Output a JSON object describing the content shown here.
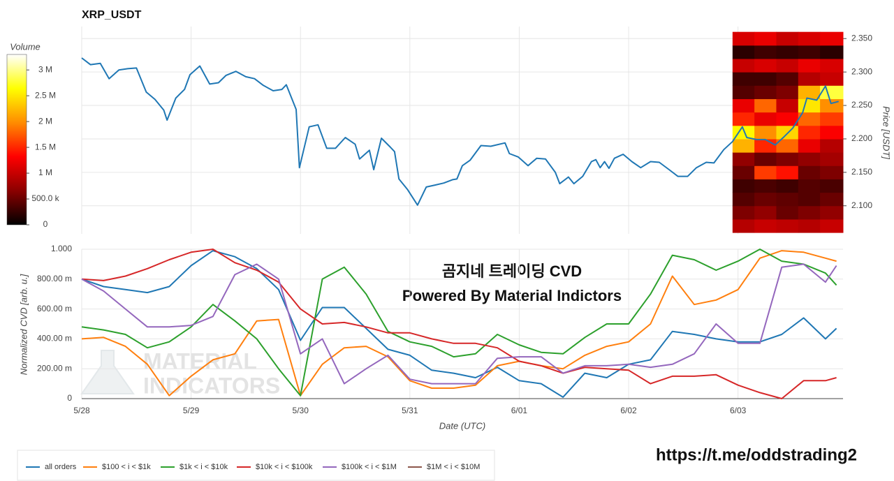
{
  "chart_data": [
    {
      "type": "line",
      "title": "XRP_USDT",
      "y_label": "Price [USDT]",
      "color": "#1f77b4",
      "x": [
        0,
        0.08,
        0.17,
        0.25,
        0.34,
        0.42,
        0.5,
        0.59,
        0.67,
        0.75,
        0.78,
        0.86,
        0.94,
        0.99,
        1.08,
        1.17,
        1.25,
        1.32,
        1.41,
        1.5,
        1.58,
        1.66,
        1.75,
        1.83,
        1.87,
        1.96,
        1.99,
        2.08,
        2.16,
        2.24,
        2.32,
        2.41,
        2.5,
        2.54,
        2.63,
        2.67,
        2.74,
        2.82,
        2.86,
        2.9,
        2.98,
        3.07,
        3.15,
        3.23,
        3.31,
        3.39,
        3.43,
        3.48,
        3.55,
        3.65,
        3.74,
        3.87,
        3.91,
        3.99,
        4.08,
        4.16,
        4.24,
        4.33,
        4.37,
        4.45,
        4.5,
        4.58,
        4.66,
        4.7,
        4.74,
        4.78,
        4.82,
        4.87,
        4.95,
        5.03,
        5.11,
        5.2,
        5.28,
        5.37,
        5.45,
        5.54,
        5.62,
        5.71,
        5.78,
        5.87,
        5.95,
        6.04,
        6.08,
        6.17,
        6.25,
        6.34,
        6.42,
        6.5,
        6.59,
        6.63,
        6.72,
        6.8,
        6.85,
        6.92
      ],
      "values": [
        2.321,
        2.311,
        2.313,
        2.29,
        2.303,
        2.305,
        2.306,
        2.27,
        2.259,
        2.243,
        2.228,
        2.261,
        2.274,
        2.296,
        2.309,
        2.282,
        2.284,
        2.295,
        2.301,
        2.293,
        2.29,
        2.28,
        2.272,
        2.274,
        2.281,
        2.244,
        2.157,
        2.218,
        2.221,
        2.186,
        2.186,
        2.202,
        2.192,
        2.17,
        2.183,
        2.154,
        2.201,
        2.188,
        2.181,
        2.14,
        2.124,
        2.101,
        2.128,
        2.131,
        2.134,
        2.139,
        2.14,
        2.16,
        2.168,
        2.19,
        2.189,
        2.194,
        2.178,
        2.173,
        2.16,
        2.171,
        2.17,
        2.15,
        2.133,
        2.143,
        2.133,
        2.144,
        2.166,
        2.169,
        2.157,
        2.166,
        2.156,
        2.171,
        2.177,
        2.166,
        2.157,
        2.166,
        2.165,
        2.154,
        2.144,
        2.144,
        2.157,
        2.165,
        2.164,
        2.184,
        2.196,
        2.218,
        2.202,
        2.199,
        2.199,
        2.191,
        2.203,
        2.216,
        2.239,
        2.261,
        2.258,
        2.279,
        2.253,
        2.256
      ],
      "xlim": [
        0,
        6.96
      ],
      "ylim": [
        2.058,
        2.368
      ],
      "xticks": [
        0,
        1,
        2,
        3,
        4,
        5,
        6
      ],
      "yticks": [
        {
          "value": 2.1,
          "label": "2.100"
        },
        {
          "value": 2.15,
          "label": "2.150"
        },
        {
          "value": 2.2,
          "label": "2.200"
        },
        {
          "value": 2.25,
          "label": "2.250"
        },
        {
          "value": 2.3,
          "label": "2.300"
        },
        {
          "value": 2.35,
          "label": "2.350"
        }
      ],
      "grid": true,
      "heatmap": {
        "x": [
          5.95,
          6.15,
          6.35,
          6.55,
          6.75,
          6.96
        ],
        "y": [
          2.06,
          2.08,
          2.1,
          2.12,
          2.14,
          2.16,
          2.18,
          2.2,
          2.22,
          2.24,
          2.26,
          2.28,
          2.3,
          2.32,
          2.34,
          2.36
        ],
        "values": [
          [
            900000,
            1000000,
            950000,
            900000,
            1000000
          ],
          [
            600000,
            700000,
            500000,
            600000,
            700000
          ],
          [
            400000,
            500000,
            450000,
            400000,
            500000
          ],
          [
            300000,
            350000,
            300000,
            400000,
            350000
          ],
          [
            500000,
            1600000,
            1400000,
            500000,
            600000
          ],
          [
            700000,
            500000,
            600000,
            700000,
            800000
          ],
          [
            2200000,
            1500000,
            1800000,
            1200000,
            900000
          ],
          [
            2600000,
            2000000,
            2400000,
            1500000,
            1300000
          ],
          [
            1500000,
            1200000,
            1300000,
            1800000,
            1600000
          ],
          [
            1200000,
            1800000,
            1000000,
            2500000,
            2000000
          ],
          [
            400000,
            500000,
            600000,
            2200000,
            2800000
          ],
          [
            300000,
            300000,
            400000,
            900000,
            1000000
          ],
          [
            1000000,
            1100000,
            1000000,
            1200000,
            1100000
          ],
          [
            200000,
            300000,
            250000,
            300000,
            200000
          ],
          [
            1100000,
            1200000,
            1000000,
            1100000,
            1200000
          ]
        ]
      },
      "colorbar": {
        "title": "Volume",
        "lim": [
          0,
          3300000
        ],
        "colorscale": [
          "#000000",
          "#8b0000",
          "#ff0000",
          "#ff8c00",
          "#ffff00",
          "#ffffff"
        ],
        "ticks": [
          0,
          {
            "value": 500000,
            "label": "500.0 k"
          },
          {
            "value": 1000000,
            "label": "1 M"
          },
          {
            "value": 1500000,
            "label": "1.5 M"
          },
          {
            "value": 2000000,
            "label": "2 M"
          },
          {
            "value": 2500000,
            "label": "2.5 M"
          },
          {
            "value": 3000000,
            "label": "3 M"
          }
        ]
      }
    },
    {
      "type": "line",
      "y_label": "Normalized CVD [arb. u.]",
      "x_label": "Date (UTC)",
      "annotations": [
        "곰지네 트레이딩 CVD",
        "Powered By Material Indictors"
      ],
      "x": [
        0,
        0.2,
        0.4,
        0.6,
        0.8,
        1,
        1.2,
        1.4,
        1.6,
        1.8,
        2,
        2.2,
        2.4,
        2.6,
        2.8,
        3,
        3.2,
        3.4,
        3.6,
        3.8,
        4,
        4.2,
        4.4,
        4.6,
        4.8,
        5,
        5.2,
        5.4,
        5.6,
        5.8,
        6,
        6.2,
        6.4,
        6.6,
        6.8,
        6.9
      ],
      "series": [
        {
          "name": "all orders",
          "color": "#1f77b4",
          "values": [
            0.8,
            0.75,
            0.73,
            0.71,
            0.75,
            0.89,
            0.99,
            0.95,
            0.87,
            0.73,
            0.39,
            0.61,
            0.61,
            0.47,
            0.33,
            0.29,
            0.19,
            0.17,
            0.14,
            0.21,
            0.12,
            0.1,
            0.01,
            0.17,
            0.14,
            0.23,
            0.26,
            0.45,
            0.43,
            0.4,
            0.38,
            0.38,
            0.43,
            0.54,
            0.4,
            0.47
          ]
        },
        {
          "name": "$100 < i < $1k",
          "color": "#ff7f0e",
          "values": [
            0.4,
            0.41,
            0.35,
            0.23,
            0.02,
            0.15,
            0.26,
            0.3,
            0.52,
            0.53,
            0.02,
            0.23,
            0.34,
            0.35,
            0.28,
            0.12,
            0.07,
            0.07,
            0.09,
            0.22,
            0.25,
            0.22,
            0.2,
            0.29,
            0.35,
            0.38,
            0.5,
            0.82,
            0.63,
            0.66,
            0.73,
            0.94,
            0.99,
            0.98,
            0.94,
            0.92
          ]
        },
        {
          "name": "$1k < i < $10k",
          "color": "#2ca02c",
          "values": [
            0.48,
            0.46,
            0.43,
            0.34,
            0.38,
            0.48,
            0.63,
            0.52,
            0.4,
            0.2,
            0.02,
            0.8,
            0.88,
            0.7,
            0.45,
            0.38,
            0.35,
            0.28,
            0.3,
            0.43,
            0.36,
            0.31,
            0.3,
            0.41,
            0.5,
            0.5,
            0.7,
            0.96,
            0.93,
            0.86,
            0.92,
            1,
            0.92,
            0.9,
            0.84,
            0.76
          ]
        },
        {
          "name": "$10k < i < $100k",
          "color": "#d62728",
          "values": [
            0.8,
            0.79,
            0.82,
            0.87,
            0.93,
            0.98,
            1,
            0.91,
            0.86,
            0.78,
            0.6,
            0.5,
            0.51,
            0.48,
            0.44,
            0.44,
            0.4,
            0.37,
            0.37,
            0.34,
            0.25,
            0.22,
            0.17,
            0.21,
            0.2,
            0.19,
            0.1,
            0.15,
            0.15,
            0.16,
            0.09,
            0.04,
            0,
            0.12,
            0.12,
            0.14
          ]
        },
        {
          "name": "$100k < i < $1M",
          "color": "#9467bd",
          "values": [
            0.8,
            0.72,
            0.6,
            0.48,
            0.48,
            0.49,
            0.55,
            0.83,
            0.9,
            0.8,
            0.3,
            0.4,
            0.1,
            0.2,
            0.29,
            0.13,
            0.1,
            0.1,
            0.1,
            0.27,
            0.28,
            0.28,
            0.17,
            0.22,
            0.22,
            0.23,
            0.21,
            0.23,
            0.3,
            0.5,
            0.37,
            0.37,
            0.88,
            0.9,
            0.78,
            0.89
          ]
        },
        {
          "name": "$1M < i < $10M",
          "color": "#8c564b",
          "values": [
            null,
            null,
            null,
            null,
            null,
            null,
            null,
            null,
            null,
            null,
            null,
            null,
            null,
            null,
            null,
            null,
            null,
            null,
            null,
            null,
            null,
            null,
            null,
            null,
            null,
            null,
            null,
            null,
            null,
            null,
            null,
            null,
            null,
            null,
            null,
            null
          ]
        }
      ],
      "xlim": [
        0,
        6.96
      ],
      "ylim": [
        0,
        1
      ],
      "xticks": [
        {
          "value": 0,
          "label": "5/28"
        },
        {
          "value": 1,
          "label": "5/29"
        },
        {
          "value": 2,
          "label": "5/30"
        },
        {
          "value": 3,
          "label": "5/31"
        },
        {
          "value": 4,
          "label": "6/01"
        },
        {
          "value": 5,
          "label": "6/02"
        },
        {
          "value": 6,
          "label": "6/03"
        }
      ],
      "yticks": [
        0,
        {
          "value": 0.2,
          "label": "200.00 m"
        },
        {
          "value": 0.4,
          "label": "400.00 m"
        },
        {
          "value": 0.6,
          "label": "600.00 m"
        },
        {
          "value": 0.8,
          "label": "800.00 m"
        },
        {
          "value": 1,
          "label": "1.000"
        }
      ],
      "grid": true,
      "legend": "bottom"
    }
  ],
  "watermark": [
    "MATERIAL",
    "INDICATORS"
  ],
  "footer_link": "https://t.me/oddstrading2"
}
